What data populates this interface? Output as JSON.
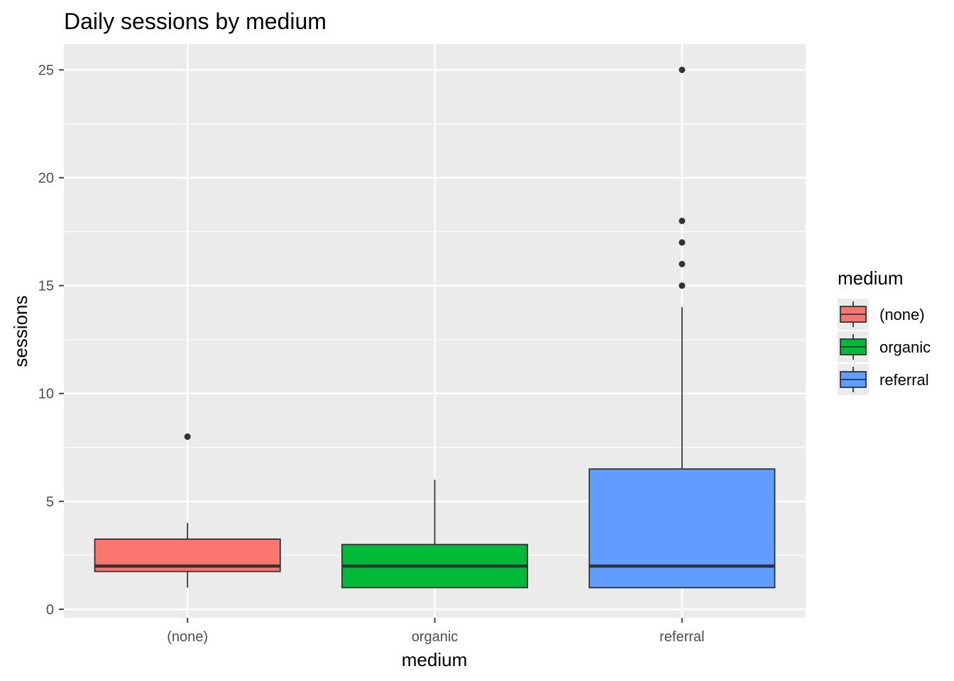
{
  "chart_data": {
    "type": "boxplot",
    "title": "Daily sessions by medium",
    "xlabel": "medium",
    "ylabel": "sessions",
    "ylim": [
      -0.4,
      26.2
    ],
    "yticks": [
      0,
      5,
      10,
      15,
      20,
      25
    ],
    "ytick_labels": [
      "0",
      "5",
      "10",
      "15",
      "20",
      "25"
    ],
    "grid": true,
    "legend": {
      "title": "medium",
      "position": "right"
    },
    "categories": [
      "(none)",
      "organic",
      "referral"
    ],
    "series": [
      {
        "name": "(none)",
        "color": "#F8766D",
        "whisker_low": 1,
        "q1": 1.75,
        "median": 2,
        "q3": 3.25,
        "whisker_high": 4,
        "outliers": [
          8
        ]
      },
      {
        "name": "organic",
        "color": "#00BA38",
        "whisker_low": 1,
        "q1": 1,
        "median": 2,
        "q3": 3,
        "whisker_high": 6,
        "outliers": []
      },
      {
        "name": "referral",
        "color": "#619CFF",
        "whisker_low": 1,
        "q1": 1,
        "median": 2,
        "q3": 6.5,
        "whisker_high": 14,
        "outliers": [
          15,
          16,
          17,
          18,
          25
        ]
      }
    ]
  }
}
